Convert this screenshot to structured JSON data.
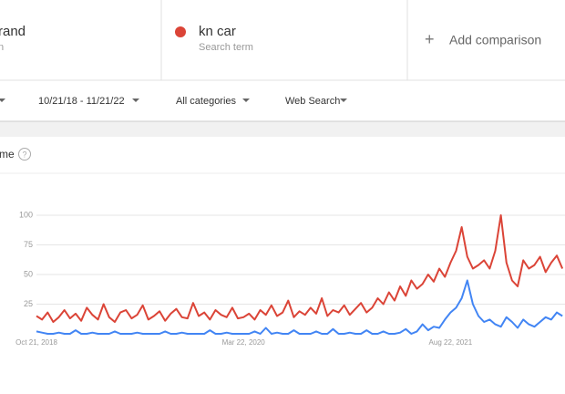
{
  "compare": [
    {
      "subtitle": "n"
    },
    {
      "subtitle": "Search term"
    }
  ],
  "add_comparison": "Add comparison",
  "filters": {
    "date_range": "10/21/18 - 11/21/22",
    "category": "All categories",
    "search_type": "Web Search"
  },
  "section_title": "me",
  "chart_data": {
    "type": "line",
    "categories": [
      "Oct 21, 2018",
      null,
      null,
      null,
      null,
      null,
      null,
      null,
      null,
      null,
      null,
      null,
      null,
      null,
      null,
      null,
      null,
      null,
      null,
      null,
      null,
      null,
      null,
      null,
      null,
      null,
      null,
      null,
      null,
      null,
      null,
      null,
      null,
      null,
      null,
      null,
      null,
      "Mar 22, 2020",
      null,
      null,
      null,
      null,
      null,
      null,
      null,
      null,
      null,
      null,
      null,
      null,
      null,
      null,
      null,
      null,
      null,
      null,
      null,
      null,
      null,
      null,
      null,
      null,
      null,
      null,
      null,
      null,
      null,
      null,
      null,
      null,
      null,
      null,
      null,
      null,
      "Aug 22, 2021",
      null,
      null,
      null,
      null,
      null,
      null,
      null,
      null,
      null,
      null,
      null,
      null,
      null,
      null,
      null,
      null,
      null,
      null,
      null,
      null
    ],
    "series": [
      {
        "name": "rand",
        "color": "#4285f4",
        "values": [
          2,
          1,
          0,
          0,
          1,
          0,
          0,
          3,
          0,
          0,
          1,
          0,
          0,
          0,
          2,
          0,
          0,
          0,
          1,
          0,
          0,
          0,
          0,
          2,
          0,
          0,
          1,
          0,
          0,
          0,
          0,
          3,
          0,
          0,
          1,
          0,
          0,
          0,
          0,
          2,
          0,
          5,
          0,
          1,
          0,
          0,
          3,
          0,
          0,
          0,
          2,
          0,
          0,
          4,
          0,
          0,
          1,
          0,
          0,
          3,
          0,
          0,
          2,
          0,
          0,
          1,
          4,
          0,
          2,
          8,
          3,
          6,
          5,
          12,
          18,
          22,
          30,
          45,
          25,
          15,
          10,
          12,
          8,
          6,
          14,
          10,
          5,
          12,
          8,
          6,
          10,
          14,
          12,
          18,
          15
        ]
      },
      {
        "name": "kn car",
        "color": "#db4437",
        "values": [
          15,
          12,
          18,
          10,
          14,
          20,
          13,
          17,
          11,
          22,
          16,
          12,
          25,
          14,
          10,
          18,
          20,
          13,
          16,
          24,
          12,
          15,
          19,
          11,
          17,
          21,
          14,
          13,
          26,
          15,
          18,
          12,
          20,
          16,
          14,
          22,
          13,
          14,
          17,
          12,
          20,
          16,
          24,
          15,
          18,
          28,
          14,
          19,
          16,
          22,
          17,
          30,
          15,
          20,
          18,
          24,
          16,
          21,
          26,
          18,
          22,
          30,
          25,
          35,
          28,
          40,
          32,
          45,
          38,
          42,
          50,
          44,
          55,
          48,
          60,
          70,
          90,
          65,
          55,
          58,
          62,
          55,
          70,
          100,
          60,
          45,
          40,
          62,
          55,
          58,
          65,
          52,
          60,
          66,
          55
        ]
      }
    ],
    "ylim": [
      0,
      100
    ],
    "yticks": [
      25,
      50,
      75,
      100
    ],
    "grid": true
  }
}
